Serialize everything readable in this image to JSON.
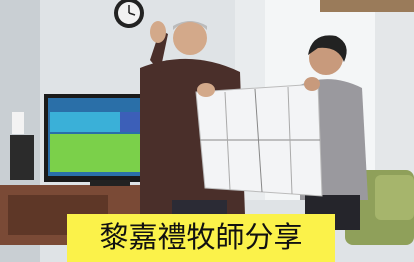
{
  "caption": "黎嘉禮牧師分享"
}
